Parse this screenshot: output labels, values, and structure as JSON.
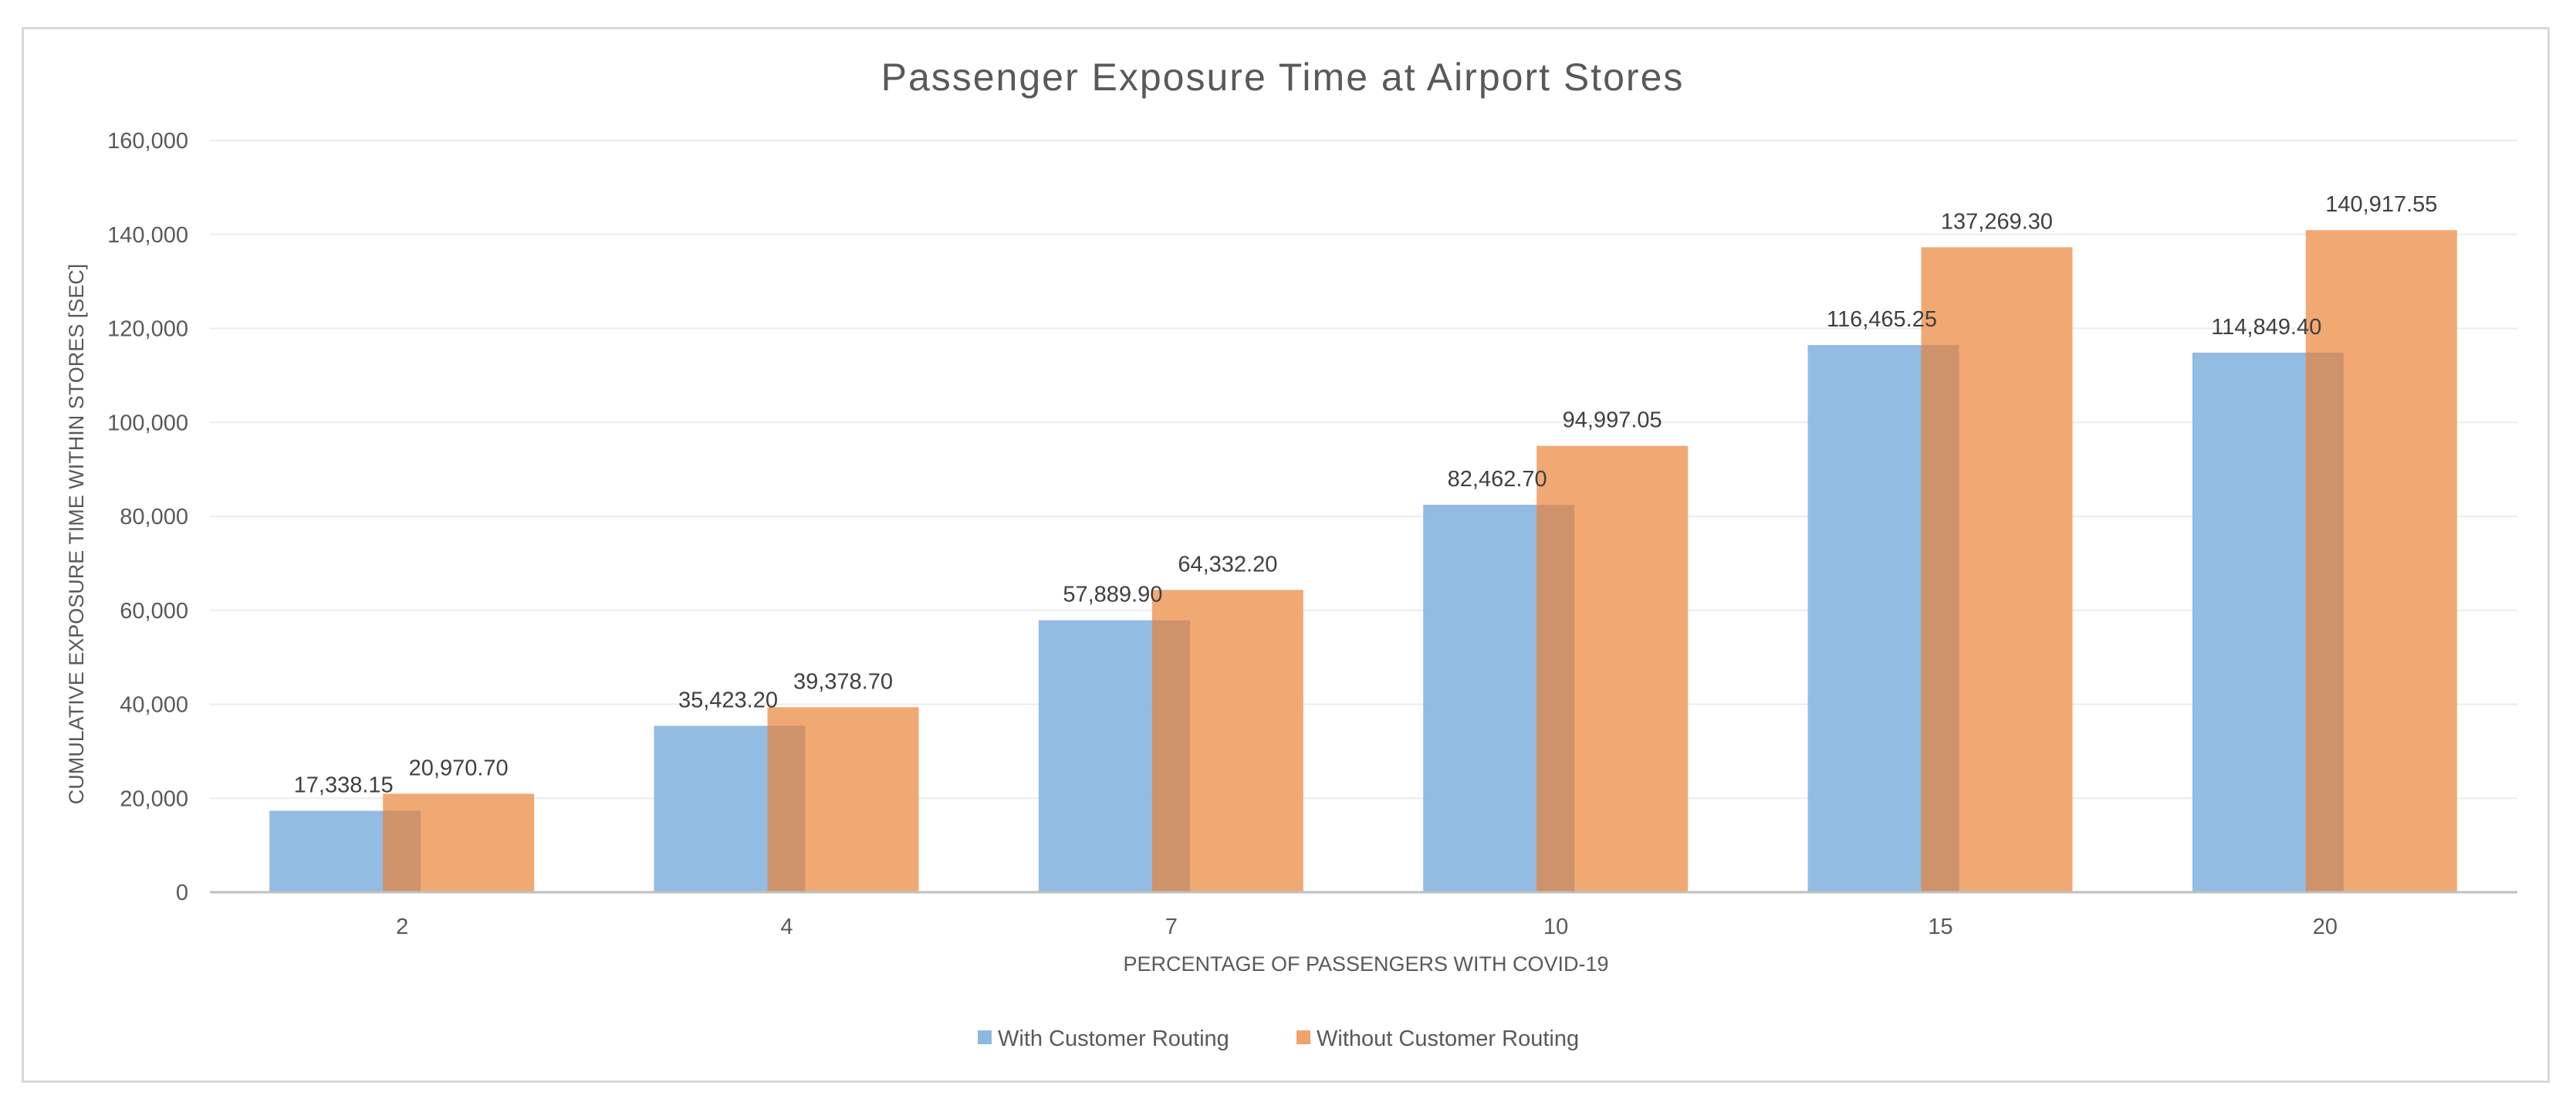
{
  "chart_data": {
    "type": "bar",
    "title": "Passenger Exposure Time at Airport Stores",
    "xlabel": "PERCENTAGE OF PASSENGERS WITH COVID-19",
    "ylabel": "CUMULATIVE EXPOSURE TIME WITHIN STORES [SEC]",
    "categories": [
      "2",
      "4",
      "7",
      "10",
      "15",
      "20"
    ],
    "ylim": [
      0,
      160000
    ],
    "yticks": [
      0,
      20000,
      40000,
      60000,
      80000,
      100000,
      120000,
      140000,
      160000
    ],
    "ytick_labels": [
      "0",
      "20,000",
      "40,000",
      "60,000",
      "80,000",
      "100,000",
      "120,000",
      "140,000",
      "160,000"
    ],
    "grid": true,
    "legend_position": "bottom",
    "series": [
      {
        "name": "With Customer Routing",
        "color": "#8db8e2",
        "values": [
          17338.15,
          35423.2,
          57889.9,
          82462.7,
          116465.25,
          114849.4
        ],
        "labels": [
          "17,338.15",
          "35,423.20",
          "57,889.90",
          "82,462.70",
          "116,465.25",
          "114,849.40"
        ]
      },
      {
        "name": "Without Customer Routing",
        "color": "#f0a46c",
        "values": [
          20970.7,
          39378.7,
          64332.2,
          94997.05,
          137269.3,
          140917.55
        ],
        "labels": [
          "20,970.70",
          "39,378.70",
          "64,332.20",
          "94,997.05",
          "137,269.30",
          "140,917.55"
        ]
      }
    ]
  }
}
